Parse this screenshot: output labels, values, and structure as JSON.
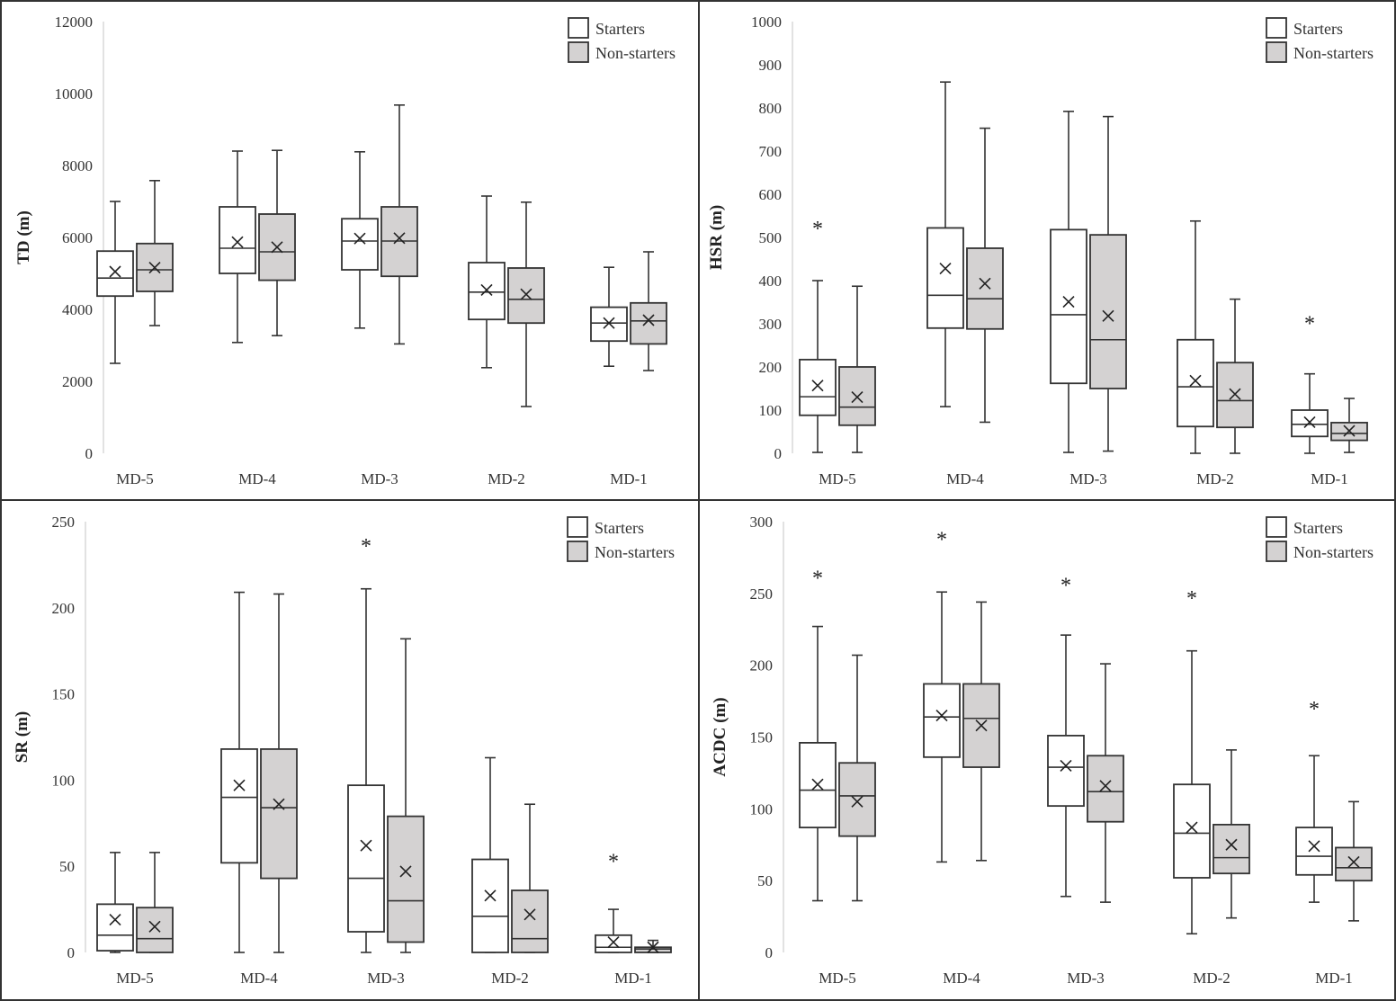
{
  "chart_data": [
    {
      "type": "box",
      "ylabel": "TD (m)",
      "ylim": [
        0,
        12000
      ],
      "yticks": [
        "0",
        "2000",
        "4000",
        "6000",
        "8000",
        "10000",
        "12000"
      ],
      "ytick_values": [
        0,
        2000,
        4000,
        6000,
        8000,
        10000,
        12000
      ],
      "categories": [
        "MD-5",
        "MD-4",
        "MD-3",
        "MD-2",
        "MD-1"
      ],
      "legend": [
        "Starters",
        "Non-starters"
      ],
      "legend_position": "top-right",
      "series": [
        {
          "name": "Starters",
          "color": "#ffffff",
          "boxes": [
            {
              "min": 2500,
              "q1": 4370,
              "median": 4870,
              "q3": 5620,
              "max": 7000,
              "mean": 5050
            },
            {
              "min": 3080,
              "q1": 5000,
              "median": 5700,
              "q3": 6850,
              "max": 8400,
              "mean": 5870
            },
            {
              "min": 3480,
              "q1": 5100,
              "median": 5900,
              "q3": 6520,
              "max": 8380,
              "mean": 5970
            },
            {
              "min": 2380,
              "q1": 3720,
              "median": 4480,
              "q3": 5300,
              "max": 7150,
              "mean": 4540
            },
            {
              "min": 2420,
              "q1": 3120,
              "median": 3620,
              "q3": 4060,
              "max": 5170,
              "mean": 3620
            }
          ]
        },
        {
          "name": "Non-starters",
          "color": "#d4d2d2",
          "boxes": [
            {
              "min": 3550,
              "q1": 4500,
              "median": 5100,
              "q3": 5830,
              "max": 7580,
              "mean": 5160
            },
            {
              "min": 3270,
              "q1": 4810,
              "median": 5600,
              "q3": 6650,
              "max": 8420,
              "mean": 5730
            },
            {
              "min": 3040,
              "q1": 4920,
              "median": 5900,
              "q3": 6850,
              "max": 9680,
              "mean": 5980
            },
            {
              "min": 1300,
              "q1": 3620,
              "median": 4280,
              "q3": 5150,
              "max": 6980,
              "mean": 4420
            },
            {
              "min": 2300,
              "q1": 3040,
              "median": 3680,
              "q3": 4180,
              "max": 5600,
              "mean": 3700
            }
          ]
        }
      ],
      "significance": []
    },
    {
      "type": "box",
      "ylabel": "HSR (m)",
      "ylim": [
        0,
        1000
      ],
      "yticks": [
        "0",
        "100",
        "200",
        "300",
        "400",
        "500",
        "600",
        "700",
        "800",
        "900",
        "1000"
      ],
      "ytick_values": [
        0,
        100,
        200,
        300,
        400,
        500,
        600,
        700,
        800,
        900,
        1000
      ],
      "categories": [
        "MD-5",
        "MD-4",
        "MD-3",
        "MD-2",
        "MD-1"
      ],
      "legend": [
        "Starters",
        "Non-starters"
      ],
      "legend_position": "top-right",
      "series": [
        {
          "name": "Starters",
          "color": "#ffffff",
          "boxes": [
            {
              "min": 2,
              "q1": 88,
              "median": 131,
              "q3": 217,
              "max": 400,
              "mean": 157
            },
            {
              "min": 108,
              "q1": 290,
              "median": 366,
              "q3": 522,
              "max": 860,
              "mean": 428
            },
            {
              "min": 2,
              "q1": 162,
              "median": 321,
              "q3": 518,
              "max": 792,
              "mean": 351
            },
            {
              "min": 0,
              "q1": 62,
              "median": 154,
              "q3": 263,
              "max": 538,
              "mean": 168
            },
            {
              "min": 0,
              "q1": 39,
              "median": 67,
              "q3": 100,
              "max": 184,
              "mean": 72
            }
          ]
        },
        {
          "name": "Non-starters",
          "color": "#d4d2d2",
          "boxes": [
            {
              "min": 2,
              "q1": 65,
              "median": 107,
              "q3": 200,
              "max": 387,
              "mean": 130
            },
            {
              "min": 72,
              "q1": 288,
              "median": 358,
              "q3": 475,
              "max": 753,
              "mean": 393
            },
            {
              "min": 5,
              "q1": 150,
              "median": 263,
              "q3": 506,
              "max": 780,
              "mean": 318
            },
            {
              "min": 0,
              "q1": 60,
              "median": 122,
              "q3": 210,
              "max": 357,
              "mean": 137
            },
            {
              "min": 2,
              "q1": 30,
              "median": 46,
              "q3": 71,
              "max": 127,
              "mean": 52
            }
          ]
        }
      ],
      "significance": [
        {
          "category": "MD-5",
          "label": "*",
          "y": 525
        },
        {
          "category": "MD-1",
          "label": "*",
          "y": 305
        }
      ]
    },
    {
      "type": "box",
      "ylabel": "SR (m)",
      "ylim": [
        0,
        250
      ],
      "yticks": [
        "0",
        "50",
        "100",
        "150",
        "200",
        "250"
      ],
      "ytick_values": [
        0,
        50,
        100,
        150,
        200,
        250
      ],
      "categories": [
        "MD-5",
        "MD-4",
        "MD-3",
        "MD-2",
        "MD-1"
      ],
      "legend": [
        "Starters",
        "Non-starters"
      ],
      "legend_position": "top-right",
      "series": [
        {
          "name": "Starters",
          "color": "#ffffff",
          "boxes": [
            {
              "min": 0,
              "q1": 1,
              "median": 10,
              "q3": 28,
              "max": 58,
              "mean": 19
            },
            {
              "min": 0,
              "q1": 52,
              "median": 90,
              "q3": 118,
              "max": 209,
              "mean": 97
            },
            {
              "min": 0,
              "q1": 12,
              "median": 43,
              "q3": 97,
              "max": 211,
              "mean": 62
            },
            {
              "min": 0,
              "q1": 0,
              "median": 21,
              "q3": 54,
              "max": 113,
              "mean": 33
            },
            {
              "min": 0,
              "q1": 0,
              "median": 3,
              "q3": 10,
              "max": 25,
              "mean": 6
            }
          ]
        },
        {
          "name": "Non-starters",
          "color": "#d4d2d2",
          "boxes": [
            {
              "min": 0,
              "q1": 0,
              "median": 8,
              "q3": 26,
              "max": 58,
              "mean": 15
            },
            {
              "min": 0,
              "q1": 43,
              "median": 84,
              "q3": 118,
              "max": 208,
              "mean": 86
            },
            {
              "min": 0,
              "q1": 6,
              "median": 30,
              "q3": 79,
              "max": 182,
              "mean": 47
            },
            {
              "min": 0,
              "q1": 0,
              "median": 8,
              "q3": 36,
              "max": 86,
              "mean": 22
            },
            {
              "min": 0,
              "q1": 0,
              "median": 2,
              "q3": 3,
              "max": 7,
              "mean": 3
            }
          ]
        }
      ],
      "significance": [
        {
          "category": "MD-3",
          "label": "*",
          "y": 237
        },
        {
          "category": "MD-1",
          "label": "*",
          "y": 54
        }
      ]
    },
    {
      "type": "box",
      "ylabel": "ACDC (m)",
      "ylim": [
        0,
        300
      ],
      "yticks": [
        "0",
        "50",
        "100",
        "150",
        "200",
        "250",
        "300"
      ],
      "ytick_values": [
        0,
        50,
        100,
        150,
        200,
        250,
        300
      ],
      "categories": [
        "MD-5",
        "MD-4",
        "MD-3",
        "MD-2",
        "MD-1"
      ],
      "legend": [
        "Starters",
        "Non-starters"
      ],
      "legend_position": "top-right",
      "series": [
        {
          "name": "Starters",
          "color": "#ffffff",
          "boxes": [
            {
              "min": 36,
              "q1": 87,
              "median": 113,
              "q3": 146,
              "max": 227,
              "mean": 117
            },
            {
              "min": 63,
              "q1": 136,
              "median": 164,
              "q3": 187,
              "max": 251,
              "mean": 165
            },
            {
              "min": 39,
              "q1": 102,
              "median": 129,
              "q3": 151,
              "max": 221,
              "mean": 130
            },
            {
              "min": 13,
              "q1": 52,
              "median": 83,
              "q3": 117,
              "max": 210,
              "mean": 87
            },
            {
              "min": 35,
              "q1": 54,
              "median": 67,
              "q3": 87,
              "max": 137,
              "mean": 74
            }
          ]
        },
        {
          "name": "Non-starters",
          "color": "#d4d2d2",
          "boxes": [
            {
              "min": 36,
              "q1": 81,
              "median": 109,
              "q3": 132,
              "max": 207,
              "mean": 105
            },
            {
              "min": 64,
              "q1": 129,
              "median": 163,
              "q3": 187,
              "max": 244,
              "mean": 158
            },
            {
              "min": 35,
              "q1": 91,
              "median": 112,
              "q3": 137,
              "max": 201,
              "mean": 116
            },
            {
              "min": 24,
              "q1": 55,
              "median": 66,
              "q3": 89,
              "max": 141,
              "mean": 75
            },
            {
              "min": 22,
              "q1": 50,
              "median": 59,
              "q3": 73,
              "max": 105,
              "mean": 63
            }
          ]
        }
      ],
      "significance": [
        {
          "category": "MD-5",
          "label": "*",
          "y": 262
        },
        {
          "category": "MD-4",
          "label": "*",
          "y": 289
        },
        {
          "category": "MD-3",
          "label": "*",
          "y": 257
        },
        {
          "category": "MD-2",
          "label": "*",
          "y": 248
        },
        {
          "category": "MD-1",
          "label": "*",
          "y": 171
        }
      ]
    }
  ]
}
